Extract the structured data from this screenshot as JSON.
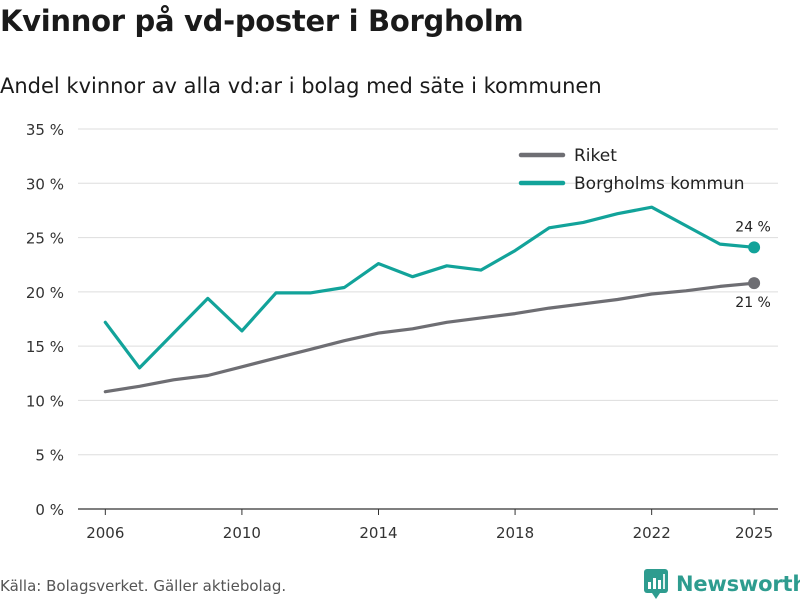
{
  "header": {
    "title": "Kvinnor på vd-poster i Borgholm",
    "subtitle": "Andel kvinnor av alla vd:ar i bolag med säte i kommunen"
  },
  "footer": {
    "source": "Källa: Bolagsverket. Gäller aktiebolag.",
    "brand": "Newsworthy"
  },
  "chart_data": {
    "type": "line",
    "title": "Kvinnor på vd-poster i Borgholm",
    "subtitle": "Andel kvinnor av alla vd:ar i bolag med säte i kommunen",
    "xlabel": "",
    "ylabel": "",
    "xlim": [
      2006,
      2025
    ],
    "ylim": [
      0,
      35
    ],
    "x_ticks": [
      2006,
      2010,
      2014,
      2018,
      2022,
      2025
    ],
    "x_tick_labels": [
      "2006",
      "2010",
      "2014",
      "2018",
      "2022",
      "2025"
    ],
    "y_ticks": [
      0,
      5,
      10,
      15,
      20,
      25,
      30,
      35
    ],
    "y_tick_labels": [
      "0 %",
      "5 %",
      "10 %",
      "15 %",
      "20 %",
      "25 %",
      "30 %",
      "35 %"
    ],
    "grid": true,
    "legend_position": "top-right",
    "x": [
      2006,
      2007,
      2008,
      2009,
      2010,
      2011,
      2012,
      2013,
      2014,
      2015,
      2016,
      2017,
      2018,
      2019,
      2020,
      2021,
      2022,
      2023,
      2024,
      2025
    ],
    "series": [
      {
        "name": "Riket",
        "color": "#6e6e73",
        "values": [
          10.8,
          11.3,
          11.9,
          12.3,
          13.1,
          13.9,
          14.7,
          15.5,
          16.2,
          16.6,
          17.2,
          17.6,
          18.0,
          18.5,
          18.9,
          19.3,
          19.8,
          20.1,
          20.5,
          20.8
        ],
        "end_label": "21 %"
      },
      {
        "name": "Borgholms kommun",
        "color": "#12a39a",
        "values": [
          17.2,
          13.0,
          16.2,
          19.4,
          16.4,
          19.9,
          19.9,
          20.4,
          22.6,
          21.4,
          22.4,
          22.0,
          23.8,
          25.9,
          26.4,
          27.2,
          27.8,
          26.1,
          24.4,
          24.1
        ],
        "end_label": "24 %"
      }
    ]
  }
}
